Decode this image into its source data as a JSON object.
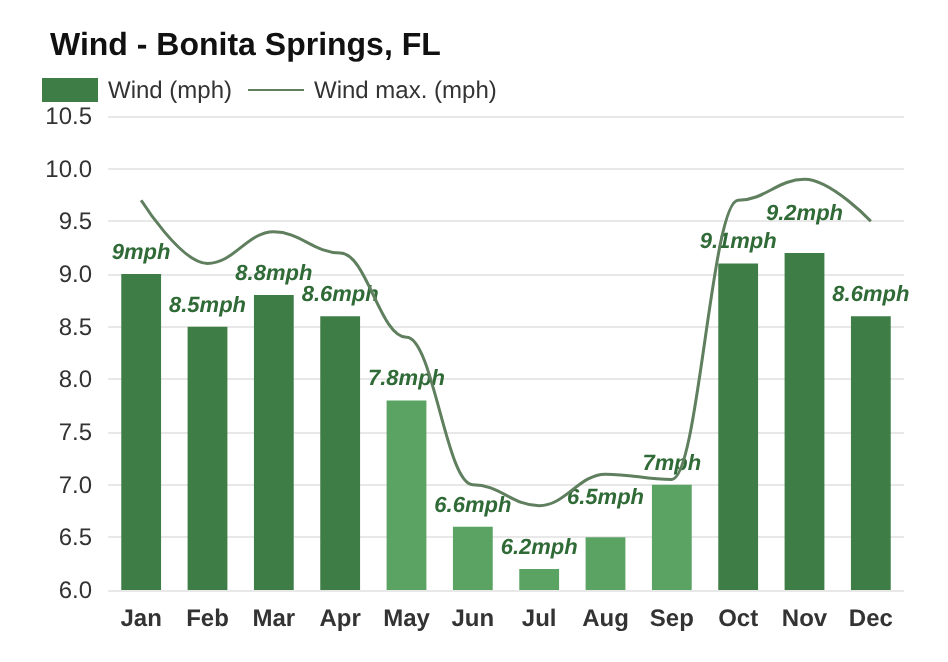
{
  "chart_data": {
    "type": "bar",
    "title": "Wind - Bonita Springs, FL",
    "categories": [
      "Jan",
      "Feb",
      "Mar",
      "Apr",
      "May",
      "Jun",
      "Jul",
      "Aug",
      "Sep",
      "Oct",
      "Nov",
      "Dec"
    ],
    "series": [
      {
        "name": "Wind (mph)",
        "color": "#3f7d46",
        "colors": [
          "#3f7d46",
          "#3f7d46",
          "#3f7d46",
          "#3f7d46",
          "#5aa363",
          "#5aa363",
          "#5aa363",
          "#5aa363",
          "#5aa363",
          "#3f7d46",
          "#3f7d46",
          "#3f7d46"
        ],
        "values": [
          9,
          8.5,
          8.8,
          8.6,
          7.8,
          6.6,
          6.2,
          6.5,
          7,
          9.1,
          9.2,
          8.6
        ],
        "value_labels": [
          "9mph",
          "8.5mph",
          "8.8mph",
          "8.6mph",
          "7.8mph",
          "6.6mph",
          "6.2mph",
          "6.5mph",
          "7mph",
          "9.1mph",
          "9.2mph",
          "8.6mph"
        ]
      },
      {
        "name": "Wind max. (mph)",
        "type": "line",
        "color": "#5f7f5f",
        "values": [
          9.7,
          9.1,
          9.4,
          9.2,
          8.4,
          7.0,
          6.8,
          7.1,
          7.05,
          9.7,
          9.9,
          9.5
        ]
      }
    ],
    "ylim": [
      6,
      10.5
    ],
    "yticks": [
      {
        "value": 6,
        "label": "6.0"
      },
      6.5,
      {
        "value": 7,
        "label": "7.0"
      },
      7.5,
      {
        "value": 8,
        "label": "8.0"
      },
      8.5,
      {
        "value": 9,
        "label": "9.0"
      },
      9.5,
      {
        "value": 10,
        "label": "10.0"
      },
      10.5
    ],
    "grid": "y",
    "legend": "top left",
    "marker": "none",
    "line_style": "solid"
  }
}
